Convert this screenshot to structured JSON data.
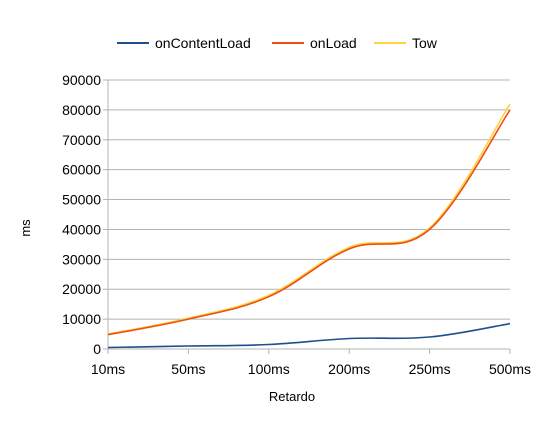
{
  "chart_data": {
    "type": "line",
    "title": "",
    "xlabel": "Retardo",
    "ylabel": "ms",
    "categories": [
      "10ms",
      "50ms",
      "100ms",
      "200ms",
      "250ms",
      "500ms"
    ],
    "ylim": [
      0,
      90000
    ],
    "yticks": [
      0,
      10000,
      20000,
      30000,
      40000,
      50000,
      60000,
      70000,
      80000,
      90000
    ],
    "yticklabels": [
      "0",
      "10000",
      "20000",
      "30000",
      "40000",
      "50000",
      "60000",
      "70000",
      "80000",
      "90000"
    ],
    "grid": true,
    "legend": "top",
    "series": [
      {
        "name": "onContentLoad",
        "color": "#1f4e8c",
        "values": [
          500,
          1000,
          1500,
          3500,
          4000,
          8500
        ]
      },
      {
        "name": "onLoad",
        "color": "#ee4e12",
        "values": [
          4800,
          10000,
          17500,
          33500,
          40000,
          80000
        ]
      },
      {
        "name": "Tow",
        "color": "#ffd23f",
        "values": [
          5000,
          10300,
          18000,
          34000,
          40500,
          82000
        ]
      }
    ]
  }
}
